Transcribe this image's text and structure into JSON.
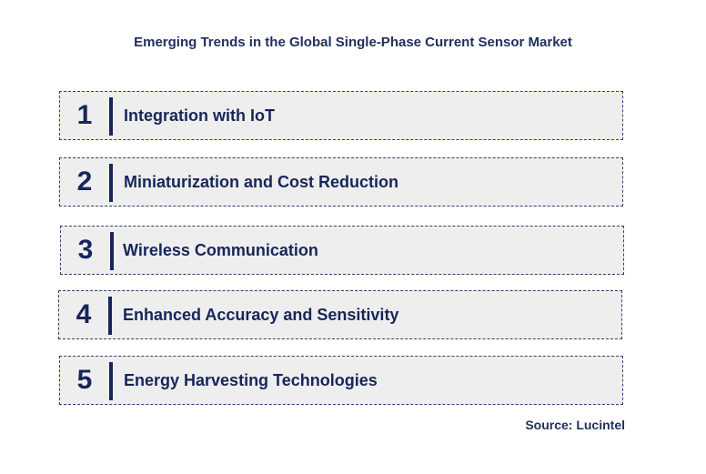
{
  "title": "Emerging Trends in the Global Single-Phase Current Sensor Market",
  "items": [
    {
      "number": "1",
      "label": "Integration with IoT"
    },
    {
      "number": "2",
      "label": "Miniaturization and Cost Reduction"
    },
    {
      "number": "3",
      "label": "Wireless Communication"
    },
    {
      "number": "4",
      "label": "Enhanced Accuracy and Sensitivity"
    },
    {
      "number": "5",
      "label": "Energy Harvesting Technologies"
    }
  ],
  "source": "Source: Lucintel",
  "colors": {
    "text": "#17265a",
    "box_fill": "#eeeeee",
    "box_border": "#2f3f6e"
  }
}
